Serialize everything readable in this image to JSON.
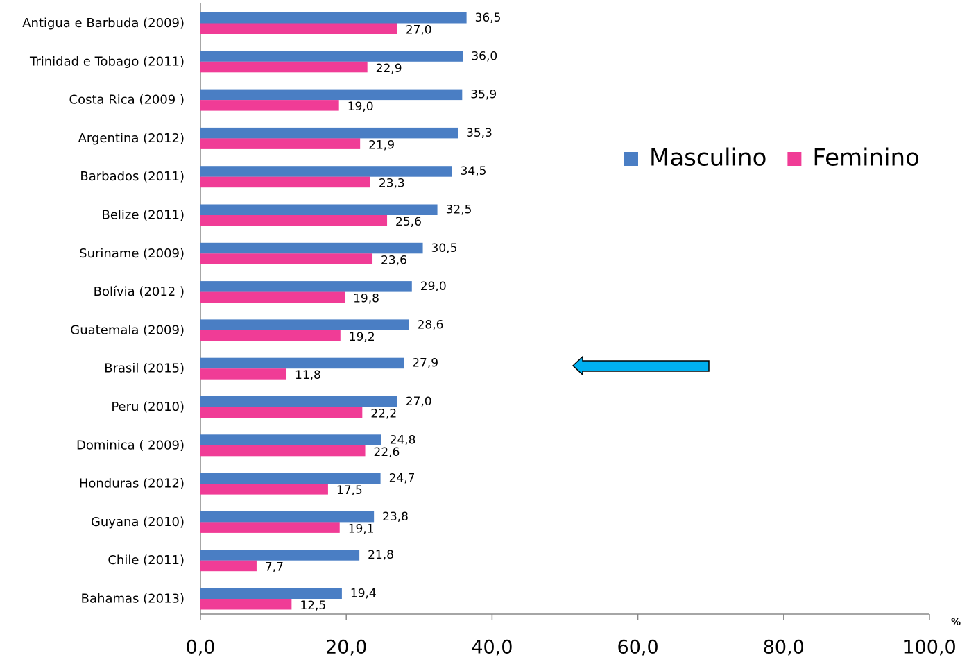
{
  "chart_data": {
    "type": "barh",
    "categories": [
      "Antigua e Barbuda (2009)",
      "Trinidad e Tobago (2011)",
      "Costa Rica (2009 )",
      "Argentina (2012)",
      "Barbados (2011)",
      "Belize (2011)",
      "Suriname (2009)",
      "Bolívia (2012 )",
      "Guatemala (2009)",
      "Brasil (2015)",
      "Peru (2010)",
      "Dominica ( 2009)",
      "Honduras (2012)",
      "Guyana (2010)",
      "Chile (2011)",
      "Bahamas (2013)"
    ],
    "series": [
      {
        "name": "Masculino",
        "color": "#4a7ec4",
        "values": [
          36.5,
          36.0,
          35.9,
          35.3,
          34.5,
          32.5,
          30.5,
          29.0,
          28.6,
          27.9,
          27.0,
          24.8,
          24.7,
          23.8,
          21.8,
          19.4
        ],
        "value_labels": [
          "36,5",
          "36,0",
          "35,9",
          "35,3",
          "34,5",
          "32,5",
          "30,5",
          "29,0",
          "28,6",
          "27,9",
          "27,0",
          "24,8",
          "24,7",
          "23,8",
          "21,8",
          "19,4"
        ]
      },
      {
        "name": "Feminino",
        "color": "#f03c96",
        "values": [
          27.0,
          22.9,
          19.0,
          21.9,
          23.3,
          25.6,
          23.6,
          19.8,
          19.2,
          11.8,
          22.2,
          22.6,
          17.5,
          19.1,
          7.7,
          12.5
        ],
        "value_labels": [
          "27,0",
          "22,9",
          "19,0",
          "21,9",
          "23,3",
          "25,6",
          "23,6",
          "19,8",
          "19,2",
          "11,8",
          "22,2",
          "22,6",
          "17,5",
          "19,1",
          "7,7",
          "12,5"
        ]
      }
    ],
    "xlim": [
      0,
      100
    ],
    "xticks": [
      {
        "value": 0,
        "label": "0,0"
      },
      {
        "value": 20,
        "label": "20,0"
      },
      {
        "value": 40,
        "label": "40,0"
      },
      {
        "value": 60,
        "label": "60,0"
      },
      {
        "value": 80,
        "label": "80,0"
      },
      {
        "value": 100,
        "label": "100,0"
      }
    ],
    "x_label": "%",
    "legend": "upper right"
  }
}
